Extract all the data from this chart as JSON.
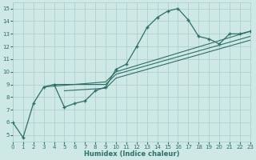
{
  "bg_color": "#cde8e5",
  "grid_color": "#a8ccca",
  "line_color": "#2d7068",
  "xlabel": "Humidex (Indice chaleur)",
  "xlim": [
    0,
    23
  ],
  "ylim": [
    4.5,
    15.5
  ],
  "xticks": [
    0,
    1,
    2,
    3,
    4,
    5,
    6,
    7,
    8,
    9,
    10,
    11,
    12,
    13,
    14,
    15,
    16,
    17,
    18,
    19,
    20,
    21,
    22,
    23
  ],
  "yticks": [
    5,
    6,
    7,
    8,
    9,
    10,
    11,
    12,
    13,
    14,
    15
  ],
  "lines": [
    {
      "x": [
        0,
        1,
        2,
        3,
        4,
        5,
        6,
        7,
        8,
        9,
        10,
        11,
        12,
        13,
        14,
        15,
        16,
        17,
        18,
        19,
        20,
        21,
        22,
        23
      ],
      "y": [
        6.0,
        4.8,
        7.5,
        8.8,
        9.0,
        7.2,
        7.5,
        7.7,
        8.5,
        8.8,
        10.2,
        10.6,
        12.0,
        13.5,
        14.3,
        14.8,
        15.0,
        14.1,
        12.8,
        12.6,
        12.2,
        13.0,
        13.0,
        13.2
      ],
      "marker": true
    },
    {
      "x": [
        3,
        9,
        10,
        23
      ],
      "y": [
        8.8,
        9.2,
        10.0,
        13.2
      ],
      "marker": false
    },
    {
      "x": [
        4,
        9,
        10,
        23
      ],
      "y": [
        9.0,
        9.0,
        9.8,
        12.8
      ],
      "marker": false
    },
    {
      "x": [
        5,
        9,
        10,
        23
      ],
      "y": [
        8.5,
        8.7,
        9.5,
        12.5
      ],
      "marker": false
    }
  ]
}
